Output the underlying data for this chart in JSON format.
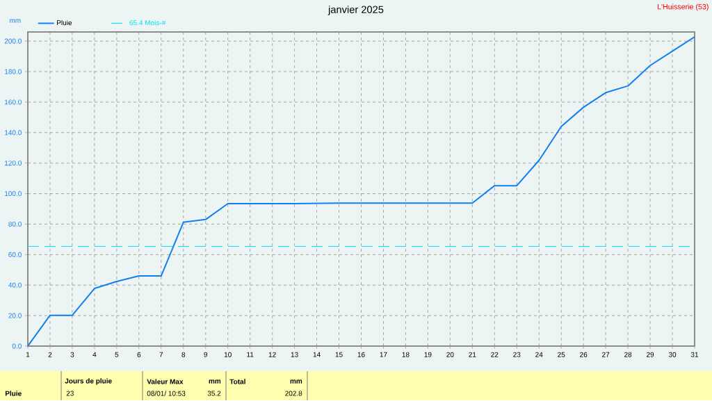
{
  "chart_data": {
    "type": "line",
    "title": "janvier 2025",
    "subtitle": "L'Huisserie (53)",
    "ylabel": "mm",
    "x": [
      1,
      2,
      3,
      4,
      5,
      6,
      7,
      8,
      9,
      10,
      11,
      12,
      13,
      14,
      15,
      16,
      17,
      18,
      19,
      20,
      21,
      22,
      23,
      24,
      25,
      26,
      27,
      28,
      29,
      30,
      31
    ],
    "series": [
      {
        "name": "Pluie",
        "color": "#1080f0",
        "values": [
          0,
          20.2,
          20.2,
          37.8,
          42.4,
          46,
          46,
          81.2,
          83,
          93.4,
          93.4,
          93.4,
          93.4,
          93.6,
          93.8,
          93.8,
          93.8,
          93.8,
          93.8,
          93.8,
          93.8,
          105.2,
          105.2,
          121.8,
          144,
          156.6,
          166.2,
          170.6,
          184,
          193.4,
          202.8
        ]
      }
    ],
    "xlim": [
      1,
      31
    ],
    "xticks": [
      1,
      2,
      3,
      4,
      5,
      6,
      7,
      8,
      9,
      10,
      11,
      12,
      13,
      14,
      15,
      16,
      17,
      18,
      19,
      20,
      21,
      22,
      23,
      24,
      25,
      26,
      27,
      28,
      29,
      30,
      31
    ],
    "ylim": [
      0,
      206
    ],
    "yticks": [
      {
        "value": 0,
        "label": "0.0"
      },
      {
        "value": 20,
        "label": "20.0"
      },
      {
        "value": 40,
        "label": "40.0"
      },
      {
        "value": 60,
        "label": "60.0"
      },
      {
        "value": 80,
        "label": "80.0"
      },
      {
        "value": 100,
        "label": "100.0"
      },
      {
        "value": 120,
        "label": "120.0"
      },
      {
        "value": 140,
        "label": "140.0"
      },
      {
        "value": 160,
        "label": "160.0"
      },
      {
        "value": 180,
        "label": "180.0"
      },
      {
        "value": 200,
        "label": "200.0"
      }
    ],
    "ref_lines": [
      {
        "axis": "y",
        "value": 65.4,
        "label": "65.4 Mois-#",
        "color": "#00e5ee",
        "line_style": "dashed"
      }
    ],
    "grid": true,
    "legend": "top left",
    "marker": "none",
    "line_style": "solid",
    "annotations": [
      "Pluie",
      "Jours de pluie",
      "23",
      "Valeur Max",
      "mm",
      "08/01/ 10:53",
      "35.2",
      "Total",
      "mm",
      "202.8"
    ]
  }
}
